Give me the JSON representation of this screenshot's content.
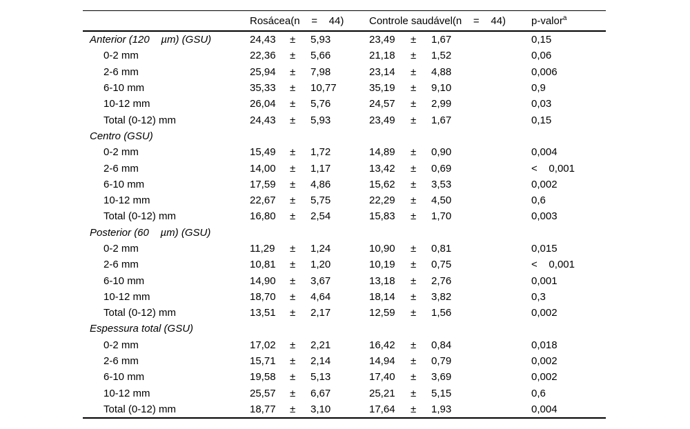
{
  "table": {
    "header": {
      "spacer": "",
      "group1": "Rosácea(n    =    44)",
      "group2": "Controle saudável(n    =    44)",
      "pvalue": "p-valor",
      "pvalue_superscript": "a"
    },
    "plus_minus": "±",
    "rows": [
      {
        "label": "Anterior (120    µm) (GSU)",
        "section": true,
        "m1": "24,43",
        "sd1": "5,93",
        "m2": "23,49",
        "sd2": "1,67",
        "p": "0,15"
      },
      {
        "label": "0-2 mm",
        "section": false,
        "m1": "22,36",
        "sd1": "5,66",
        "m2": "21,18",
        "sd2": "1,52",
        "p": "0,06"
      },
      {
        "label": "2-6 mm",
        "section": false,
        "m1": "25,94",
        "sd1": "7,98",
        "m2": "23,14",
        "sd2": "4,88",
        "p": "0,006"
      },
      {
        "label": "6-10 mm",
        "section": false,
        "m1": "35,33",
        "sd1": "10,77",
        "m2": "35,19",
        "sd2": "9,10",
        "p": "0,9"
      },
      {
        "label": "10-12 mm",
        "section": false,
        "m1": "26,04",
        "sd1": "5,76",
        "m2": "24,57",
        "sd2": "2,99",
        "p": "0,03"
      },
      {
        "label": "Total (0-12) mm",
        "section": false,
        "m1": "24,43",
        "sd1": "5,93",
        "m2": "23,49",
        "sd2": "1,67",
        "p": "0,15"
      },
      {
        "label": "Centro (GSU)",
        "section": true,
        "m1": "",
        "sd1": "",
        "m2": "",
        "sd2": "",
        "p": ""
      },
      {
        "label": "0-2 mm",
        "section": false,
        "m1": "15,49",
        "sd1": "1,72",
        "m2": "14,89",
        "sd2": "0,90",
        "p": "0,004"
      },
      {
        "label": "2-6 mm",
        "section": false,
        "m1": "14,00",
        "sd1": "1,17",
        "m2": "13,42",
        "sd2": "0,69",
        "p": "<    0,001"
      },
      {
        "label": "6-10 mm",
        "section": false,
        "m1": "17,59",
        "sd1": "4,86",
        "m2": "15,62",
        "sd2": "3,53",
        "p": "0,002"
      },
      {
        "label": "10-12 mm",
        "section": false,
        "m1": "22,67",
        "sd1": "5,75",
        "m2": "22,29",
        "sd2": "4,50",
        "p": "0,6"
      },
      {
        "label": "Total (0-12) mm",
        "section": false,
        "m1": "16,80",
        "sd1": "2,54",
        "m2": "15,83",
        "sd2": "1,70",
        "p": "0,003"
      },
      {
        "label": "Posterior (60    µm) (GSU)",
        "section": true,
        "m1": "",
        "sd1": "",
        "m2": "",
        "sd2": "",
        "p": ""
      },
      {
        "label": "0-2 mm",
        "section": false,
        "m1": "11,29",
        "sd1": "1,24",
        "m2": "10,90",
        "sd2": "0,81",
        "p": "0,015"
      },
      {
        "label": "2-6 mm",
        "section": false,
        "m1": "10,81",
        "sd1": "1,20",
        "m2": "10,19",
        "sd2": "0,75",
        "p": "<    0,001"
      },
      {
        "label": "6-10 mm",
        "section": false,
        "m1": "14,90",
        "sd1": "3,67",
        "m2": "13,18",
        "sd2": "2,76",
        "p": "0,001"
      },
      {
        "label": "10-12 mm",
        "section": false,
        "m1": "18,70",
        "sd1": "4,64",
        "m2": "18,14",
        "sd2": "3,82",
        "p": "0,3"
      },
      {
        "label": "Total (0-12) mm",
        "section": false,
        "m1": "13,51",
        "sd1": "2,17",
        "m2": "12,59",
        "sd2": "1,56",
        "p": "0,002"
      },
      {
        "label": "Espessura total (GSU)",
        "section": true,
        "m1": "",
        "sd1": "",
        "m2": "",
        "sd2": "",
        "p": ""
      },
      {
        "label": "0-2 mm",
        "section": false,
        "m1": "17,02",
        "sd1": "2,21",
        "m2": "16,42",
        "sd2": "0,84",
        "p": "0,018"
      },
      {
        "label": "2-6 mm",
        "section": false,
        "m1": "15,71",
        "sd1": "2,14",
        "m2": "14,94",
        "sd2": "0,79",
        "p": "0,002"
      },
      {
        "label": "6-10 mm",
        "section": false,
        "m1": "19,58",
        "sd1": "5,13",
        "m2": "17,40",
        "sd2": "3,69",
        "p": "0,002"
      },
      {
        "label": "10-12 mm",
        "section": false,
        "m1": "25,57",
        "sd1": "6,67",
        "m2": "25,21",
        "sd2": "5,15",
        "p": "0,6"
      },
      {
        "label": "Total (0-12) mm",
        "section": false,
        "m1": "18,77",
        "sd1": "3,10",
        "m2": "17,64",
        "sd2": "1,93",
        "p": "0,004"
      }
    ]
  }
}
